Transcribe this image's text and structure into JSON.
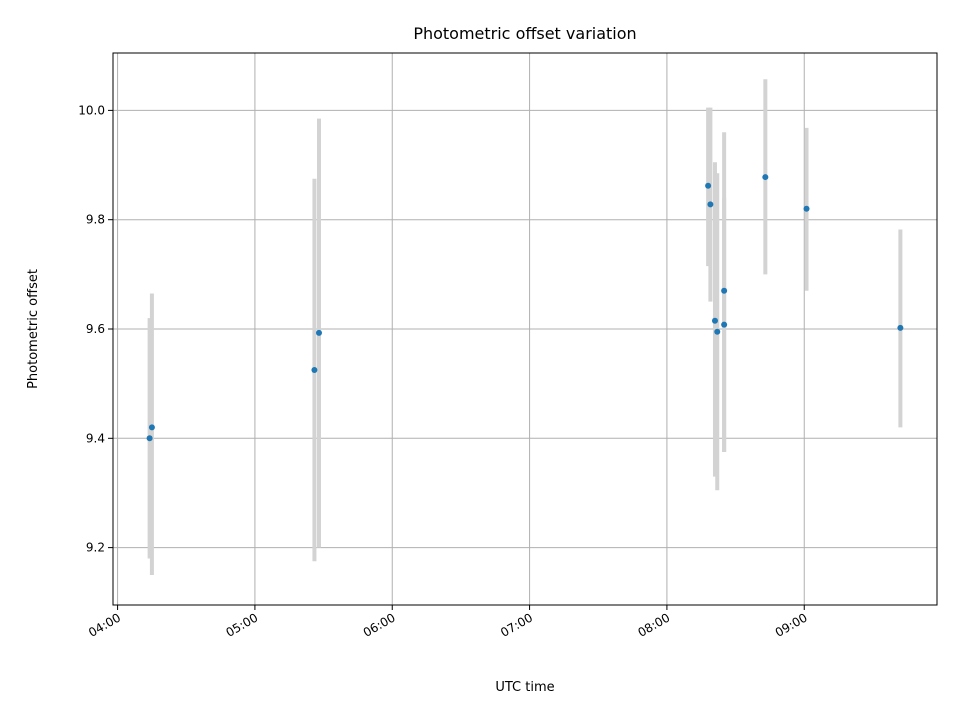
{
  "chart_data": {
    "type": "scatter",
    "title": "Photometric offset variation",
    "xlabel": "UTC time",
    "ylabel": "Photometric offset",
    "x_tick_labels": [
      "04:00",
      "05:00",
      "06:00",
      "07:00",
      "08:00",
      "09:00"
    ],
    "y_tick_labels": [
      "9.2",
      "9.4",
      "9.6",
      "9.8",
      "10.0"
    ],
    "y_tick_values": [
      9.2,
      9.4,
      9.6,
      9.8,
      10.0
    ],
    "xlim": [
      "03:58",
      "09:58"
    ],
    "ylim": [
      9.095,
      10.105
    ],
    "grid": true,
    "marker_color": "#1f77b4",
    "errorbar_color": "#d3d3d3",
    "points": [
      {
        "x": "04:14",
        "y": 9.4,
        "ylow": 9.18,
        "yhigh": 9.62
      },
      {
        "x": "04:15",
        "y": 9.42,
        "ylow": 9.15,
        "yhigh": 9.665
      },
      {
        "x": "05:26",
        "y": 9.525,
        "ylow": 9.175,
        "yhigh": 9.875
      },
      {
        "x": "05:28",
        "y": 9.593,
        "ylow": 9.2,
        "yhigh": 9.985
      },
      {
        "x": "08:18",
        "y": 9.862,
        "ylow": 9.715,
        "yhigh": 10.005
      },
      {
        "x": "08:19",
        "y": 9.828,
        "ylow": 9.65,
        "yhigh": 10.005
      },
      {
        "x": "08:21",
        "y": 9.615,
        "ylow": 9.33,
        "yhigh": 9.905
      },
      {
        "x": "08:22",
        "y": 9.595,
        "ylow": 9.305,
        "yhigh": 9.885
      },
      {
        "x": "08:25",
        "y": 9.67,
        "ylow": 9.375,
        "yhigh": 9.96
      },
      {
        "x": "08:25",
        "y": 9.608,
        "ylow": 9.375,
        "yhigh": 9.84
      },
      {
        "x": "08:43",
        "y": 9.878,
        "ylow": 9.7,
        "yhigh": 10.057
      },
      {
        "x": "09:01",
        "y": 9.82,
        "ylow": 9.67,
        "yhigh": 9.968
      },
      {
        "x": "09:42",
        "y": 9.602,
        "ylow": 9.42,
        "yhigh": 9.782
      }
    ]
  }
}
